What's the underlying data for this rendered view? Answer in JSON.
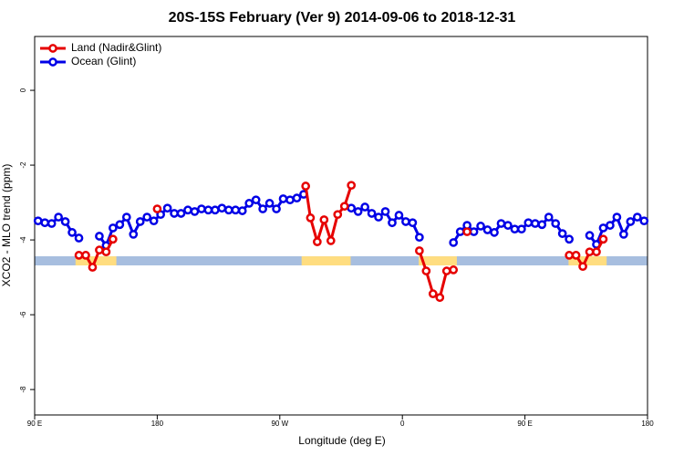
{
  "chart_data": {
    "type": "line",
    "title": "20S-15S February (Ver 9)   2014-09-06 to 2018-12-31",
    "xlabel": "Longitude (deg E)",
    "ylabel": "XCO2 - MLO trend (ppm)",
    "xlim": [
      90,
      540
    ],
    "ylim": [
      -8.68,
      1.44
    ],
    "xticks": [
      {
        "value": 90,
        "label": "90 E"
      },
      180,
      {
        "value": 270,
        "label": "90 W"
      },
      {
        "value": 360,
        "label": "0"
      },
      {
        "value": 450,
        "label": "90 E"
      },
      {
        "value": 540,
        "label": "180"
      }
    ],
    "yticks": [
      0,
      -2,
      -4,
      -6,
      -8
    ],
    "legend": "top-left",
    "mask": {
      "y": -4.56,
      "ocean_color": "#a7bedf",
      "land_color": "#ffdd80",
      "land": [
        [
          120,
          150
        ],
        [
          286,
          322
        ],
        [
          372,
          400
        ],
        [
          482,
          510
        ]
      ]
    },
    "series": [
      {
        "name": "Ocean (Glint)",
        "color": "#0000e6",
        "x": [
          92.5,
          97.5,
          102.5,
          107.5,
          112.5,
          117.5,
          122.5,
          null,
          137.5,
          142.5,
          147.5,
          152.5,
          157.5,
          162.5,
          167.5,
          172.5,
          177.5,
          182.5,
          187.5,
          192.5,
          197.5,
          202.5,
          207.5,
          212.5,
          217.5,
          222.5,
          227.5,
          232.5,
          237.5,
          242.5,
          247.5,
          252.5,
          257.5,
          262.5,
          267.5,
          272.5,
          277.5,
          282.5,
          287.5,
          null,
          322.5,
          327.5,
          332.5,
          337.5,
          342.5,
          347.5,
          352.5,
          357.5,
          362.5,
          367.5,
          372.5,
          null,
          397.5,
          402.5,
          407.5,
          412.5,
          417.5,
          422.5,
          427.5,
          432.5,
          437.5,
          442.5,
          447.5,
          452.5,
          457.5,
          462.5,
          467.5,
          472.5,
          477.5,
          482.5,
          null,
          497.5,
          502.5,
          507.5,
          512.5,
          517.5,
          522.5,
          527.5,
          532.5,
          537.5
        ],
        "values": [
          -3.49,
          -3.54,
          -3.56,
          -3.39,
          -3.51,
          -3.8,
          -3.95,
          null,
          -3.9,
          -4.15,
          -3.68,
          -3.59,
          -3.39,
          -3.85,
          -3.51,
          -3.39,
          -3.49,
          -3.32,
          -3.15,
          -3.29,
          -3.29,
          -3.2,
          -3.24,
          -3.17,
          -3.2,
          -3.2,
          -3.15,
          -3.2,
          -3.2,
          -3.22,
          -3.02,
          -2.93,
          -3.17,
          -3.02,
          -3.17,
          -2.9,
          -2.93,
          -2.88,
          -2.78,
          null,
          -3.15,
          -3.24,
          -3.12,
          -3.29,
          -3.39,
          -3.24,
          -3.54,
          -3.34,
          -3.51,
          -3.54,
          -3.93,
          null,
          -4.07,
          -3.78,
          -3.61,
          -3.78,
          -3.63,
          -3.73,
          -3.8,
          -3.56,
          -3.61,
          -3.71,
          -3.71,
          -3.54,
          -3.56,
          -3.59,
          -3.39,
          -3.56,
          -3.83,
          -3.98,
          null,
          -3.88,
          -4.12,
          -3.68,
          -3.61,
          -3.39,
          -3.85,
          -3.51,
          -3.39,
          -3.49
        ]
      },
      {
        "name": "Land (Nadir&Glint)",
        "color": "#e60000",
        "x": [
          122.5,
          127.5,
          132.5,
          137.5,
          142.5,
          147.5,
          null,
          180,
          null,
          289,
          292.5,
          297.5,
          302.5,
          307.5,
          312.5,
          317.5,
          322.5,
          null,
          372.5,
          377.5,
          382.5,
          387.5,
          392.5,
          397.5,
          null,
          407.5,
          null,
          482.5,
          487.5,
          492.5,
          497.5,
          502.5,
          507.5
        ],
        "values": [
          -4.41,
          -4.41,
          -4.73,
          -4.27,
          -4.32,
          -3.98,
          null,
          -3.17,
          null,
          -2.56,
          -3.41,
          -4.05,
          -3.46,
          -4.02,
          -3.32,
          -3.1,
          -2.54,
          null,
          -4.29,
          -4.83,
          -5.44,
          -5.54,
          -4.83,
          -4.8,
          null,
          -3.78,
          null,
          -4.41,
          -4.41,
          -4.71,
          -4.32,
          -4.32,
          -3.98
        ]
      }
    ]
  }
}
